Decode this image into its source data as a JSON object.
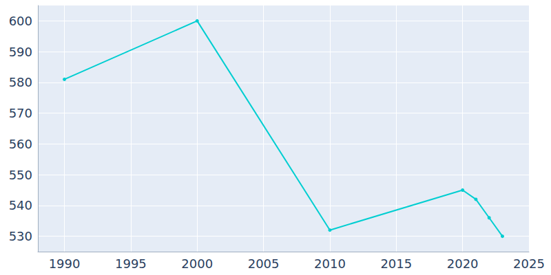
{
  "chart_data": {
    "type": "line",
    "x": [
      1990,
      2000,
      2010,
      2020,
      2021,
      2022,
      2023
    ],
    "values": [
      581,
      600,
      532,
      545,
      542,
      536,
      530
    ],
    "color": "#00ced1",
    "marker": "circle",
    "xlim": [
      1988,
      2025
    ],
    "xticks": [
      1990,
      1995,
      2000,
      2005,
      2010,
      2015,
      2020,
      2025
    ],
    "ylim": [
      525,
      605
    ],
    "yticks": [
      530,
      540,
      550,
      560,
      570,
      580,
      590,
      600
    ],
    "grid": true
  }
}
